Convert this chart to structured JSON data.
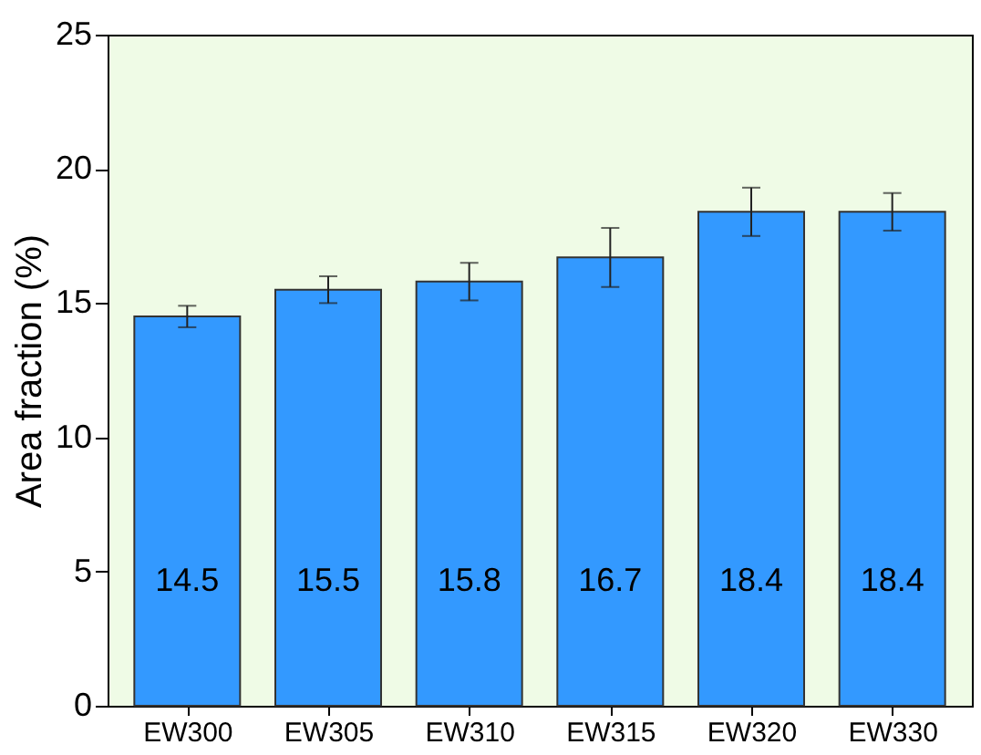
{
  "chart_data": {
    "type": "bar",
    "ylabel": "Area fraction (%)",
    "categories": [
      "EW300",
      "EW305",
      "EW310",
      "EW315",
      "EW320",
      "EW330"
    ],
    "values": [
      14.5,
      15.5,
      15.8,
      16.7,
      18.4,
      18.4
    ],
    "errors": [
      0.4,
      0.5,
      0.7,
      1.1,
      0.9,
      0.7
    ],
    "color": "#3399ff",
    "ylim": [
      0,
      25
    ],
    "yticks": [
      0,
      5,
      10,
      15,
      20,
      25
    ],
    "data_labels": true,
    "grid": false
  }
}
